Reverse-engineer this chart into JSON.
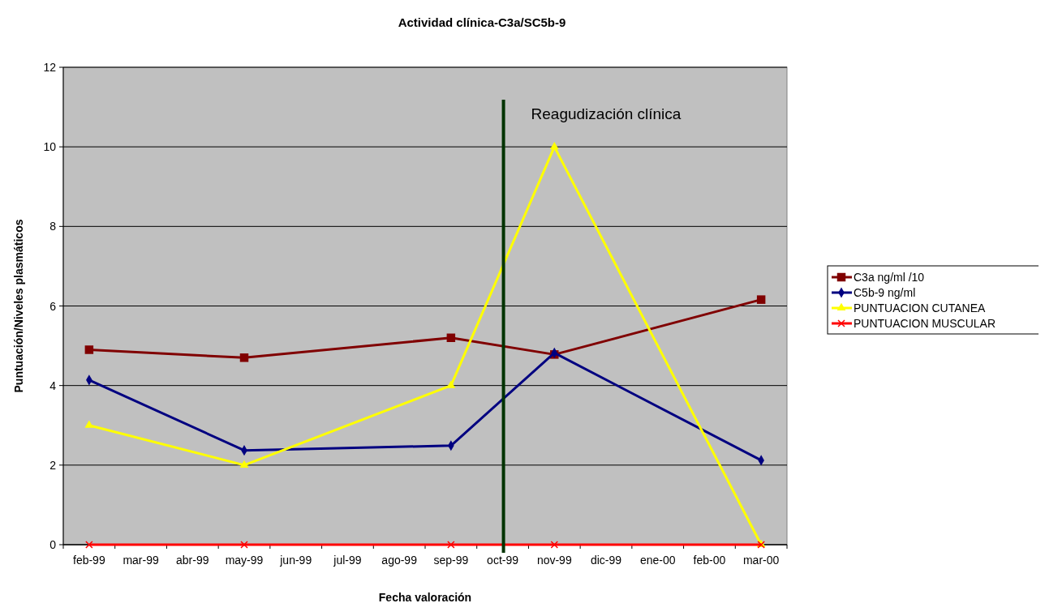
{
  "chart_data": {
    "type": "line",
    "title": "Actividad clínica-C3a/SC5b-9",
    "xlabel": "Fecha valoración",
    "ylabel": "Puntuación/Niveles plasmáticos",
    "categories": [
      "feb-99",
      "mar-99",
      "abr-99",
      "may-99",
      "jun-99",
      "jul-99",
      "ago-99",
      "sep-99",
      "oct-99",
      "nov-99",
      "dic-99",
      "ene-00",
      "feb-00",
      "mar-00"
    ],
    "series": [
      {
        "name": "C3a ng/ml /10",
        "color": "#800000",
        "marker": "square",
        "values": [
          4.9,
          null,
          null,
          4.7,
          null,
          null,
          null,
          5.2,
          null,
          4.78,
          null,
          null,
          null,
          6.16
        ]
      },
      {
        "name": "C5b-9 ng/ml",
        "color": "#000080",
        "marker": "diamond",
        "values": [
          4.14,
          null,
          null,
          2.37,
          null,
          null,
          null,
          2.49,
          null,
          4.82,
          null,
          null,
          null,
          2.12
        ]
      },
      {
        "name": "PUNTUACION CUTANEA",
        "color": "#ffff00",
        "marker": "triangle",
        "values": [
          3,
          null,
          null,
          2,
          null,
          null,
          null,
          4,
          null,
          10,
          null,
          null,
          null,
          0
        ]
      },
      {
        "name": "PUNTUACION MUSCULAR",
        "color": "#ff0000",
        "marker": "cross",
        "values": [
          0,
          null,
          null,
          0,
          null,
          null,
          null,
          0,
          null,
          0,
          null,
          null,
          null,
          0
        ]
      }
    ],
    "ylim": [
      0,
      12
    ],
    "yticks": [
      0,
      2,
      4,
      6,
      8,
      10,
      12
    ],
    "grid": "y",
    "legend": "right",
    "ref_lines": [
      {
        "axis": "x",
        "value": "oct-99",
        "label": "Reagudización clínica",
        "color": "#003300"
      }
    ]
  }
}
